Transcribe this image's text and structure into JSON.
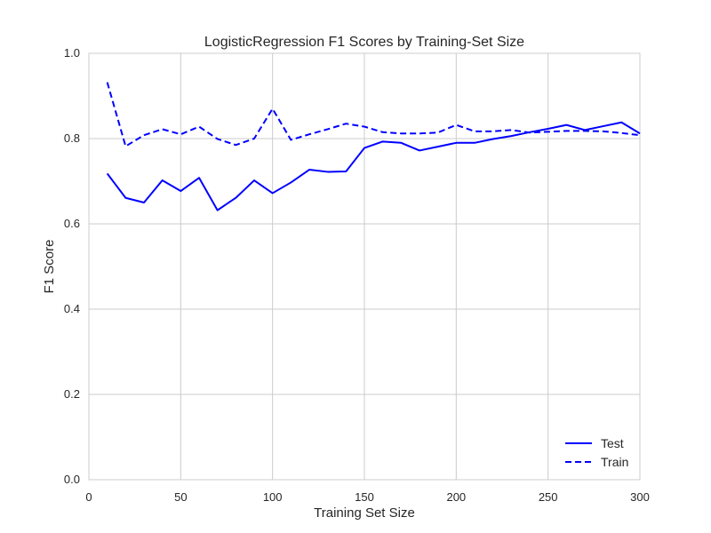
{
  "chart_data": {
    "type": "line",
    "title": "LogisticRegression F1 Scores by Training-Set Size",
    "xlabel": "Training Set Size",
    "ylabel": "F1 Score",
    "xlim": [
      0,
      300
    ],
    "ylim": [
      0.0,
      1.0
    ],
    "xticks": [
      0,
      50,
      100,
      150,
      200,
      250,
      300
    ],
    "yticks": [
      0.0,
      0.2,
      0.4,
      0.6,
      0.8,
      1.0
    ],
    "xtick_labels": [
      "0",
      "50",
      "100",
      "150",
      "200",
      "250",
      "300"
    ],
    "ytick_labels": [
      "0.0",
      "0.2",
      "0.4",
      "0.6",
      "0.8",
      "1.0"
    ],
    "grid": true,
    "legend_position": "bottom-right",
    "x": [
      10,
      20,
      30,
      40,
      50,
      60,
      70,
      80,
      90,
      100,
      110,
      120,
      130,
      140,
      150,
      160,
      170,
      180,
      190,
      200,
      210,
      220,
      230,
      240,
      250,
      260,
      270,
      280,
      290,
      300
    ],
    "series": [
      {
        "name": "Test",
        "color": "#0000ff",
        "style": "solid",
        "values": [
          0.718,
          0.661,
          0.65,
          0.702,
          0.677,
          0.708,
          0.632,
          0.661,
          0.702,
          0.672,
          0.697,
          0.727,
          0.722,
          0.723,
          0.778,
          0.793,
          0.79,
          0.772,
          0.781,
          0.79,
          0.79,
          0.799,
          0.806,
          0.815,
          0.823,
          0.832,
          0.82,
          0.829,
          0.838,
          0.812
        ]
      },
      {
        "name": "Train",
        "color": "#0000ff",
        "style": "dashed",
        "values": [
          0.932,
          0.782,
          0.808,
          0.822,
          0.81,
          0.828,
          0.799,
          0.785,
          0.8,
          0.87,
          0.797,
          0.81,
          0.822,
          0.835,
          0.828,
          0.815,
          0.812,
          0.812,
          0.814,
          0.832,
          0.817,
          0.817,
          0.82,
          0.814,
          0.816,
          0.818,
          0.818,
          0.817,
          0.813,
          0.808
        ]
      }
    ]
  }
}
